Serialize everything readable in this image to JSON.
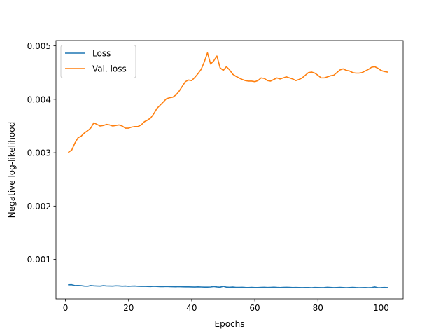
{
  "chart_data": {
    "type": "line",
    "title": "",
    "xlabel": "Epochs",
    "ylabel": "Negative log-likelihood",
    "xlim": [
      -3,
      107
    ],
    "ylim": [
      0.00026,
      0.0051
    ],
    "xticks": [
      0,
      20,
      40,
      60,
      80,
      100
    ],
    "xtick_labels": [
      "0",
      "20",
      "40",
      "60",
      "80",
      "100"
    ],
    "yticks": [
      0.001,
      0.002,
      0.003,
      0.004,
      0.005
    ],
    "ytick_labels": [
      "0.001",
      "0.002",
      "0.003",
      "0.004",
      "0.005"
    ],
    "grid": false,
    "legend_position": "upper-left",
    "x": [
      1,
      2,
      3,
      4,
      5,
      6,
      7,
      8,
      9,
      10,
      11,
      12,
      13,
      14,
      15,
      16,
      17,
      18,
      19,
      20,
      21,
      22,
      23,
      24,
      25,
      26,
      27,
      28,
      29,
      30,
      31,
      32,
      33,
      34,
      35,
      36,
      37,
      38,
      39,
      40,
      41,
      42,
      43,
      44,
      45,
      46,
      47,
      48,
      49,
      50,
      51,
      52,
      53,
      54,
      55,
      56,
      57,
      58,
      59,
      60,
      61,
      62,
      63,
      64,
      65,
      66,
      67,
      68,
      69,
      70,
      71,
      72,
      73,
      74,
      75,
      76,
      77,
      78,
      79,
      80,
      81,
      82,
      83,
      84,
      85,
      86,
      87,
      88,
      89,
      90,
      91,
      92,
      93,
      94,
      95,
      96,
      97,
      98,
      99,
      100,
      101,
      102
    ],
    "series": [
      {
        "name": "Loss",
        "color": "#1f77b4",
        "values": [
          0.000525,
          0.000526,
          0.00051,
          0.000512,
          0.000508,
          0.0005,
          0.000498,
          0.00051,
          0.000505,
          0.000502,
          0.0005,
          0.000508,
          0.000504,
          0.000502,
          0.0005,
          0.000506,
          0.000503,
          0.000498,
          0.000502,
          0.000496,
          0.0005,
          0.000502,
          0.000497,
          0.000495,
          0.000496,
          0.000494,
          0.000492,
          0.000497,
          0.000494,
          0.000491,
          0.00049,
          0.000494,
          0.00049,
          0.000488,
          0.000487,
          0.00049,
          0.000487,
          0.000485,
          0.000486,
          0.000484,
          0.000482,
          0.000486,
          0.000483,
          0.000481,
          0.00048,
          0.000483,
          0.000492,
          0.000484,
          0.000479,
          0.000497,
          0.00048,
          0.000478,
          0.000482,
          0.000476,
          0.000475,
          0.000477,
          0.000474,
          0.000473,
          0.000476,
          0.000472,
          0.000473,
          0.000476,
          0.000478,
          0.000474,
          0.000476,
          0.000479,
          0.000475,
          0.000473,
          0.000476,
          0.000478,
          0.000475,
          0.000472,
          0.000474,
          0.000473,
          0.000471,
          0.000473,
          0.000472,
          0.00047,
          0.000474,
          0.000472,
          0.000471,
          0.000473,
          0.000477,
          0.000474,
          0.000471,
          0.000473,
          0.000475,
          0.000472,
          0.00047,
          0.000473,
          0.000476,
          0.000472,
          0.00047,
          0.000471,
          0.000472,
          0.00047,
          0.000473,
          0.000484,
          0.00047,
          0.000471,
          0.000474,
          0.000472
        ]
      },
      {
        "name": "Val. loss",
        "color": "#ff7f0e",
        "values": [
          0.00301,
          0.00305,
          0.00318,
          0.00328,
          0.00331,
          0.00337,
          0.00341,
          0.00346,
          0.00356,
          0.00353,
          0.0035,
          0.00351,
          0.00353,
          0.00352,
          0.0035,
          0.00351,
          0.00352,
          0.0035,
          0.00346,
          0.00346,
          0.00348,
          0.00349,
          0.00349,
          0.00352,
          0.00358,
          0.00361,
          0.00365,
          0.00373,
          0.00383,
          0.00389,
          0.00395,
          0.00401,
          0.00403,
          0.00404,
          0.00408,
          0.00415,
          0.00424,
          0.00433,
          0.00436,
          0.00435,
          0.00441,
          0.00448,
          0.00456,
          0.0047,
          0.00487,
          0.00466,
          0.00472,
          0.00481,
          0.00459,
          0.00454,
          0.00461,
          0.00455,
          0.00447,
          0.00443,
          0.0044,
          0.00437,
          0.00435,
          0.00434,
          0.00434,
          0.00433,
          0.00435,
          0.0044,
          0.00439,
          0.00435,
          0.00434,
          0.00437,
          0.0044,
          0.00438,
          0.0044,
          0.00442,
          0.0044,
          0.00438,
          0.00435,
          0.00437,
          0.0044,
          0.00445,
          0.0045,
          0.00451,
          0.00449,
          0.00445,
          0.0044,
          0.0044,
          0.00442,
          0.00444,
          0.00445,
          0.0045,
          0.00455,
          0.00457,
          0.00454,
          0.00453,
          0.0045,
          0.00449,
          0.00449,
          0.0045,
          0.00453,
          0.00456,
          0.0046,
          0.00461,
          0.00458,
          0.00454,
          0.00452,
          0.00451
        ]
      }
    ]
  }
}
